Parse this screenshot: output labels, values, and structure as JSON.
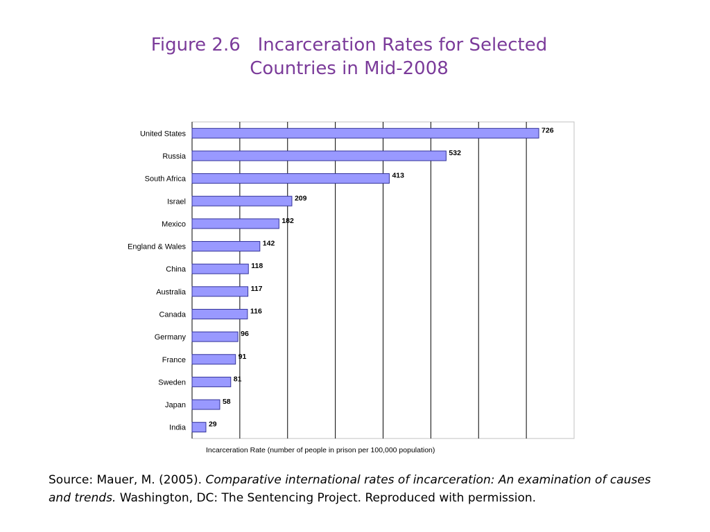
{
  "title": {
    "line1": "Figure 2.6   Incarceration Rates for Selected",
    "line2": "Countries in Mid-2008"
  },
  "source": {
    "prefix": "Source:  Mauer, M. (2005). ",
    "title_italic": "Comparative international rates of incarceration: An examination of causes and trends.",
    "suffix": " Washington, DC: The Sentencing Project. Reproduced with permission."
  },
  "colors": {
    "title": "#7b3b9a",
    "bar_fill": "#9999ff",
    "bar_stroke": "#333399",
    "gridline": "#000000",
    "frame": "#c0c0c0"
  },
  "chart_data": {
    "type": "bar",
    "orientation": "horizontal",
    "categories": [
      "United States",
      "Russia",
      "South Africa",
      "Israel",
      "Mexico",
      "England & Wales",
      "China",
      "Australia",
      "Canada",
      "Germany",
      "France",
      "Sweden",
      "Japan",
      "India"
    ],
    "values": [
      726,
      532,
      413,
      209,
      182,
      142,
      118,
      117,
      116,
      96,
      91,
      81,
      58,
      29
    ],
    "xlabel": "Incarceration Rate (number of people in prison per 100,000 population)",
    "xlim": [
      0,
      800
    ],
    "grid": true,
    "legend": "none"
  }
}
